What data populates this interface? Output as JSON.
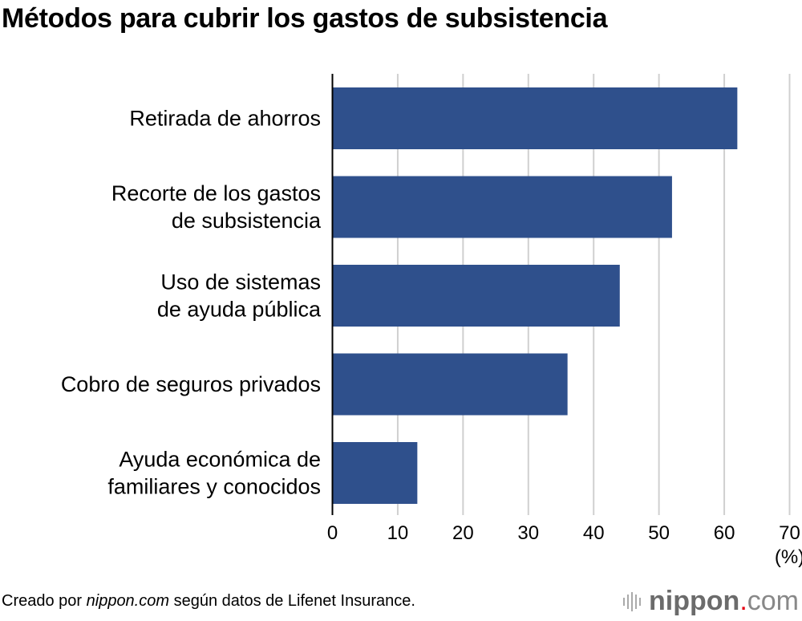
{
  "title": "Métodos para cubrir los gastos de subsistencia",
  "chart_data": {
    "type": "bar",
    "orientation": "horizontal",
    "categories": [
      [
        "Retirada de ahorros"
      ],
      [
        "Recorte de los gastos",
        "de subsistencia"
      ],
      [
        "Uso de sistemas",
        "de ayuda pública"
      ],
      [
        "Cobro de seguros privados"
      ],
      [
        "Ayuda económica de",
        "familiares y conocidos"
      ]
    ],
    "values": [
      62,
      52,
      44,
      36,
      13
    ],
    "xlim": [
      0,
      70
    ],
    "xticks": [
      "0",
      "10",
      "20",
      "30",
      "40",
      "50",
      "60",
      "70"
    ],
    "xunit": "(%)",
    "grid": true,
    "bar_color": "#2f508c"
  },
  "footer": {
    "prefix": "Creado por ",
    "source_site": "nippon.com",
    "suffix": " según datos de Lifenet Insurance."
  },
  "logo": {
    "name": "nippon",
    "dot": ".",
    "tld": "com"
  }
}
